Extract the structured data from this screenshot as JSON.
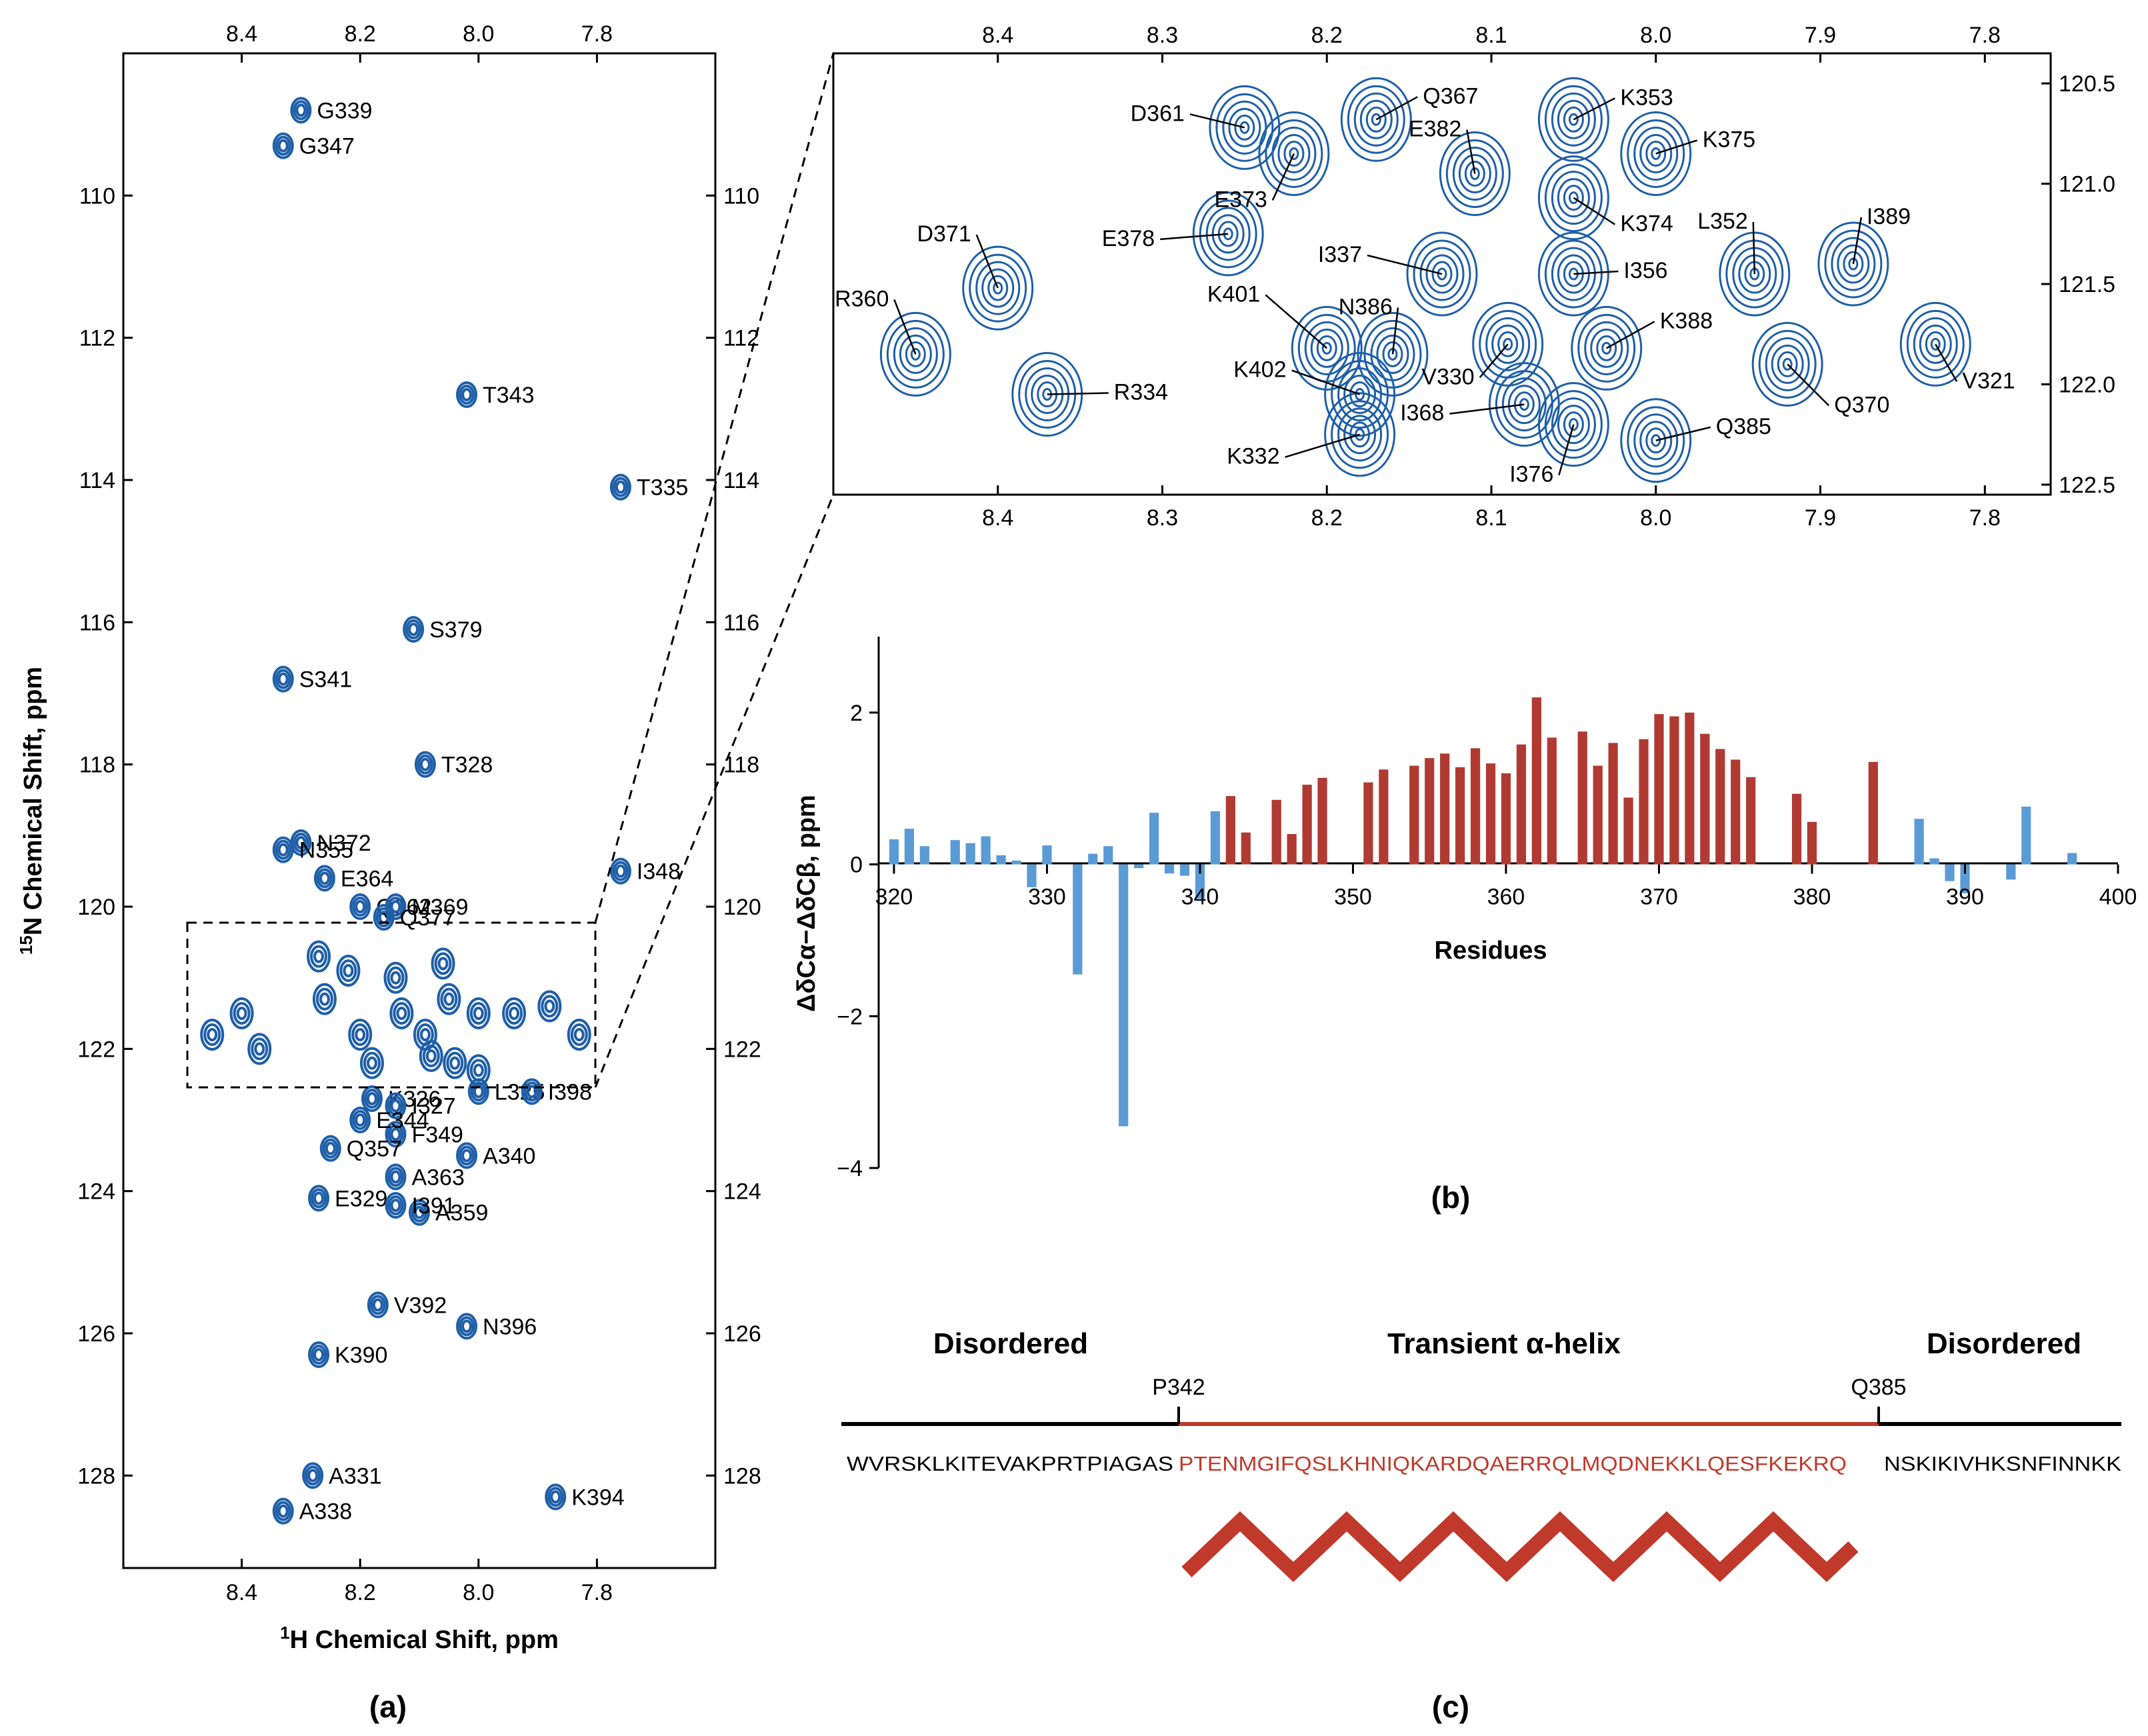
{
  "colors": {
    "contour": "#1f5fa8",
    "positive": "#b03a32",
    "negative": "#5b9bd5",
    "helix": "#c0392b",
    "axis": "#000000"
  },
  "chart_data": [
    {
      "type": "scatter",
      "panel": "(a)",
      "title": "",
      "xlabel_sup": "1",
      "xlabel": "H Chemical Shift, ppm",
      "ylabel_sup": "15",
      "ylabel": "N Chemical Shift, ppm",
      "xlim": [
        8.6,
        7.6
      ],
      "ylim": [
        108.0,
        129.3
      ],
      "xticks": [
        "8.4",
        "8.2",
        "8.0",
        "7.8"
      ],
      "yticks": [
        "110",
        "112",
        "114",
        "116",
        "118",
        "120",
        "122",
        "124",
        "126",
        "128"
      ],
      "zoom_box": {
        "h": [
          8.5,
          7.77
        ],
        "n": [
          120.2,
          122.6
        ]
      },
      "peaks": [
        {
          "label": "G339",
          "h": 8.3,
          "n": 108.8
        },
        {
          "label": "G347",
          "h": 8.33,
          "n": 109.3
        },
        {
          "label": "T343",
          "h": 8.02,
          "n": 112.8
        },
        {
          "label": "T335",
          "h": 7.76,
          "n": 114.1
        },
        {
          "label": "S379",
          "h": 8.11,
          "n": 116.1
        },
        {
          "label": "S341",
          "h": 8.33,
          "n": 116.8
        },
        {
          "label": "T328",
          "h": 8.09,
          "n": 118.0
        },
        {
          "label": "N372",
          "h": 8.3,
          "n": 119.1
        },
        {
          "label": "N355",
          "h": 8.33,
          "n": 119.2
        },
        {
          "label": "E364",
          "h": 8.26,
          "n": 119.6
        },
        {
          "label": "I348",
          "h": 7.76,
          "n": 119.5
        },
        {
          "label": "Q362",
          "h": 8.2,
          "n": 120.0
        },
        {
          "label": "M369",
          "h": 8.14,
          "n": 120.0
        },
        {
          "label": "Q377",
          "h": 8.16,
          "n": 120.15
        },
        {
          "label": "K326",
          "h": 8.18,
          "n": 122.7
        },
        {
          "label": "I327",
          "h": 8.14,
          "n": 122.8
        },
        {
          "label": "L325",
          "h": 8.0,
          "n": 122.6
        },
        {
          "label": "I398",
          "h": 7.91,
          "n": 122.6
        },
        {
          "label": "F349",
          "h": 8.14,
          "n": 123.2
        },
        {
          "label": "Q357",
          "h": 8.25,
          "n": 123.4
        },
        {
          "label": "E344",
          "h": 8.2,
          "n": 123.0
        },
        {
          "label": "A340",
          "h": 8.02,
          "n": 123.5
        },
        {
          "label": "A363",
          "h": 8.14,
          "n": 123.8
        },
        {
          "label": "E329",
          "h": 8.27,
          "n": 124.1
        },
        {
          "label": "A359",
          "h": 8.1,
          "n": 124.3
        },
        {
          "label": "I391",
          "h": 8.14,
          "n": 124.2
        },
        {
          "label": "V392",
          "h": 8.17,
          "n": 125.6
        },
        {
          "label": "N396",
          "h": 8.02,
          "n": 125.9
        },
        {
          "label": "K390",
          "h": 8.27,
          "n": 126.3
        },
        {
          "label": "K394",
          "h": 7.87,
          "n": 128.3
        },
        {
          "label": "A331",
          "h": 8.28,
          "n": 128.0
        },
        {
          "label": "A338",
          "h": 8.33,
          "n": 128.5
        }
      ]
    },
    {
      "type": "scatter",
      "panel": "(a) zoom",
      "title": "",
      "xlim": [
        8.5,
        7.76
      ],
      "ylim": [
        120.35,
        122.55
      ],
      "xticks": [
        "8.4",
        "8.3",
        "8.2",
        "8.1",
        "8.0",
        "7.9",
        "7.8"
      ],
      "yticks": [
        "120.5",
        "121.0",
        "121.5",
        "122.0",
        "122.5"
      ],
      "peaks": [
        {
          "label": "Q367",
          "h": 8.17,
          "n": 120.68
        },
        {
          "label": "K353",
          "h": 8.05,
          "n": 120.68
        },
        {
          "label": "D361",
          "h": 8.25,
          "n": 120.72
        },
        {
          "label": "E382",
          "h": 8.11,
          "n": 120.95
        },
        {
          "label": "K375",
          "h": 8.0,
          "n": 120.85
        },
        {
          "label": "E373",
          "h": 8.22,
          "n": 120.85
        },
        {
          "label": "K374",
          "h": 8.05,
          "n": 121.07
        },
        {
          "label": "E378",
          "h": 8.26,
          "n": 121.25
        },
        {
          "label": "D371",
          "h": 8.4,
          "n": 121.52
        },
        {
          "label": "L352",
          "h": 7.94,
          "n": 121.45
        },
        {
          "label": "I389",
          "h": 7.88,
          "n": 121.4
        },
        {
          "label": "I337",
          "h": 8.13,
          "n": 121.45
        },
        {
          "label": "I356",
          "h": 8.05,
          "n": 121.45
        },
        {
          "label": "R360",
          "h": 8.45,
          "n": 121.85
        },
        {
          "label": "K401",
          "h": 8.2,
          "n": 121.82
        },
        {
          "label": "N386",
          "h": 8.16,
          "n": 121.85
        },
        {
          "label": "K388",
          "h": 8.03,
          "n": 121.82
        },
        {
          "label": "V330",
          "h": 8.09,
          "n": 121.8
        },
        {
          "label": "Q370",
          "h": 7.92,
          "n": 121.9
        },
        {
          "label": "V321",
          "h": 7.83,
          "n": 121.8
        },
        {
          "label": "R334",
          "h": 8.37,
          "n": 122.05
        },
        {
          "label": "K402",
          "h": 8.18,
          "n": 122.05
        },
        {
          "label": "I368",
          "h": 8.08,
          "n": 122.1
        },
        {
          "label": "K332",
          "h": 8.18,
          "n": 122.25
        },
        {
          "label": "Q385",
          "h": 8.0,
          "n": 122.28
        },
        {
          "label": "I376",
          "h": 8.05,
          "n": 122.2
        }
      ]
    },
    {
      "type": "bar",
      "panel": "(b)",
      "title": "",
      "xlabel": "Residues",
      "ylabel": "ΔδCα−ΔδCβ, ppm",
      "xlim": [
        319,
        400
      ],
      "ylim": [
        -4,
        3
      ],
      "xticks": [
        "320",
        "330",
        "340",
        "350",
        "360",
        "370",
        "380",
        "390",
        "400"
      ],
      "yticks": [
        "2",
        "0",
        "−2",
        "−4"
      ],
      "bars": [
        [
          320,
          0.33
        ],
        [
          321,
          0.47
        ],
        [
          322,
          0.24
        ],
        [
          324,
          0.32
        ],
        [
          325,
          0.28
        ],
        [
          326,
          0.37
        ],
        [
          327,
          0.12
        ],
        [
          328,
          0.05
        ],
        [
          329,
          -0.3
        ],
        [
          330,
          0.25
        ],
        [
          332,
          -1.45
        ],
        [
          333,
          0.14
        ],
        [
          334,
          0.24
        ],
        [
          335,
          -3.45
        ],
        [
          336,
          -0.05
        ],
        [
          337,
          0.68
        ],
        [
          338,
          -0.12
        ],
        [
          339,
          -0.15
        ],
        [
          340,
          -0.45
        ],
        [
          341,
          0.7
        ],
        [
          342,
          0.9
        ],
        [
          343,
          0.42
        ],
        [
          345,
          0.85
        ],
        [
          346,
          0.4
        ],
        [
          347,
          1.05
        ],
        [
          348,
          1.14
        ],
        [
          351,
          1.08
        ],
        [
          352,
          1.25
        ],
        [
          354,
          1.3
        ],
        [
          355,
          1.4
        ],
        [
          356,
          1.46
        ],
        [
          357,
          1.28
        ],
        [
          358,
          1.53
        ],
        [
          359,
          1.33
        ],
        [
          360,
          1.2
        ],
        [
          361,
          1.58
        ],
        [
          362,
          2.2
        ],
        [
          363,
          1.67
        ],
        [
          365,
          1.75
        ],
        [
          366,
          1.3
        ],
        [
          367,
          1.6
        ],
        [
          368,
          0.88
        ],
        [
          369,
          1.65
        ],
        [
          370,
          1.98
        ],
        [
          371,
          1.95
        ],
        [
          372,
          2.0
        ],
        [
          373,
          1.72
        ],
        [
          374,
          1.52
        ],
        [
          375,
          1.38
        ],
        [
          376,
          1.15
        ],
        [
          379,
          0.93
        ],
        [
          380,
          0.56
        ],
        [
          384,
          1.35
        ],
        [
          387,
          0.6
        ],
        [
          388,
          0.08
        ],
        [
          389,
          -0.22
        ],
        [
          390,
          -0.38
        ],
        [
          393,
          -0.2
        ],
        [
          394,
          0.76
        ],
        [
          397,
          0.15
        ]
      ]
    }
  ],
  "panel_labels": {
    "a": "(a)",
    "b": "(b)",
    "c": "(c)"
  },
  "panel_c": {
    "left_title": "Disordered",
    "middle_title": "Transient α-helix",
    "right_title": "Disordered",
    "start_marker": "P342",
    "end_marker": "Q385",
    "seq_left": "WVRSKLKITEVAKPRTPIAGAS",
    "seq_helix": "PTENMGIFQSLKHNIQKARDQAERRQLMQDNEKKLQESFKEKRQ",
    "seq_right": "NSKIKIVHKSNFINNKK"
  }
}
